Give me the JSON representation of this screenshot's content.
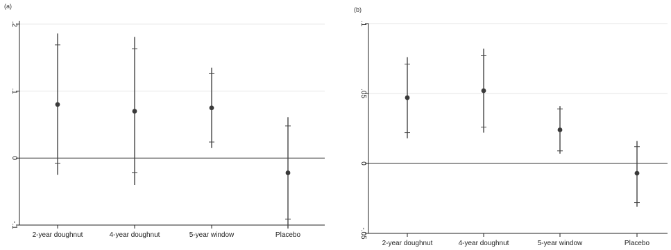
{
  "chart_data": [
    {
      "type": "scatter",
      "panel_label": "(a)",
      "categories": [
        "2-year doughnut",
        "4-year doughnut",
        "5-year window",
        "Placebo"
      ],
      "series": [
        {
          "estimate": [
            0.08,
            0.07,
            0.075,
            -0.022
          ],
          "ci95_low": [
            -0.025,
            -0.04,
            0.015,
            -0.105
          ],
          "ci95_high": [
            0.186,
            0.181,
            0.135,
            0.061
          ],
          "ci90_low": [
            -0.008,
            -0.022,
            0.024,
            -0.091
          ],
          "ci90_high": [
            0.169,
            0.163,
            0.126,
            0.048
          ]
        }
      ],
      "yticks": [
        0.2,
        0.1,
        0,
        -0.1
      ],
      "ytick_labels": [
        ".2",
        ".1",
        "0",
        "-.1"
      ],
      "ylim": [
        -0.1,
        0.205
      ],
      "grid": true,
      "reference_line": 0,
      "xlabel": "",
      "ylabel": ""
    },
    {
      "type": "scatter",
      "panel_label": "(b)",
      "categories": [
        "2-year doughnut",
        "4-year doughnut",
        "5-year window",
        "Placebo"
      ],
      "series": [
        {
          "estimate": [
            0.047,
            0.052,
            0.024,
            -0.007
          ],
          "ci95_low": [
            0.018,
            0.022,
            0.007,
            -0.031
          ],
          "ci95_high": [
            0.076,
            0.082,
            0.041,
            0.016
          ],
          "ci90_low": [
            0.022,
            0.026,
            0.009,
            -0.028
          ],
          "ci90_high": [
            0.071,
            0.077,
            0.039,
            0.012
          ]
        }
      ],
      "yticks": [
        0.1,
        0.05,
        0,
        -0.05
      ],
      "ytick_labels": [
        ".1",
        ".05",
        "0",
        "-.05"
      ],
      "ylim": [
        -0.05,
        0.1
      ],
      "grid": true,
      "reference_line": 0,
      "xlabel": "",
      "ylabel": ""
    }
  ]
}
